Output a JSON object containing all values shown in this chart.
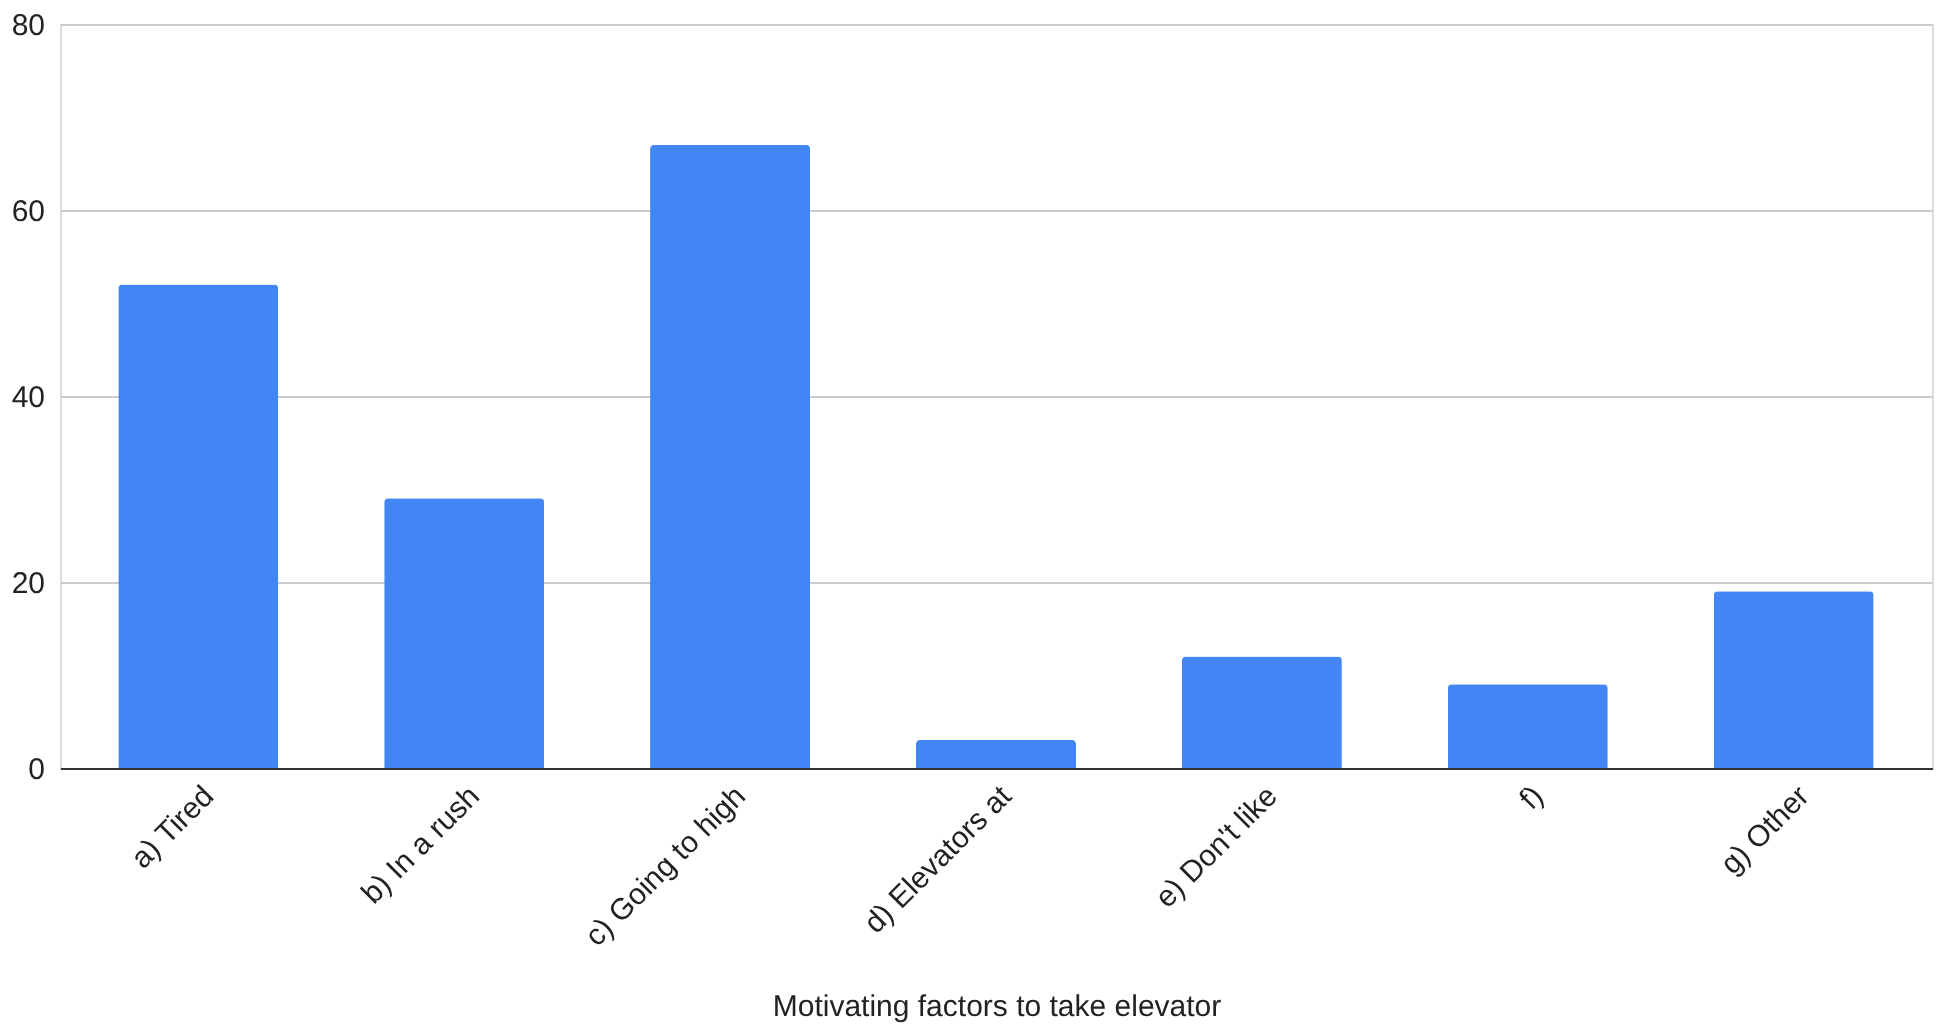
{
  "chart_data": {
    "type": "bar",
    "xlabel": "Motivating factors to take elevator",
    "categories": [
      "a) Tired",
      "b) In a rush",
      "c) Going to high",
      "d) Elevators at",
      "e) Don't like",
      "f)",
      "g) Other"
    ],
    "values": [
      52,
      29,
      67,
      3,
      12,
      9,
      19
    ],
    "color": "#4285f4",
    "ylim": [
      0,
      80
    ],
    "yticks": [
      0,
      20,
      40,
      60,
      80
    ],
    "grid": "y"
  }
}
